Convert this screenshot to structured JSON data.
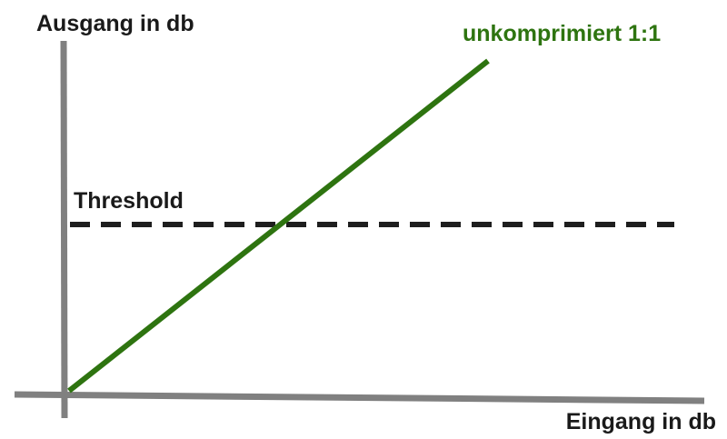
{
  "diagram": {
    "y_axis_label": "Ausgang in db",
    "x_axis_label": "Eingang in db",
    "threshold_label": "Threshold",
    "line_label": "unkomprimiert 1:1"
  },
  "colors": {
    "axis": "#808080",
    "threshold": "#1e1e1e",
    "line": "#2e7410",
    "text": "#1a1a1a"
  }
}
